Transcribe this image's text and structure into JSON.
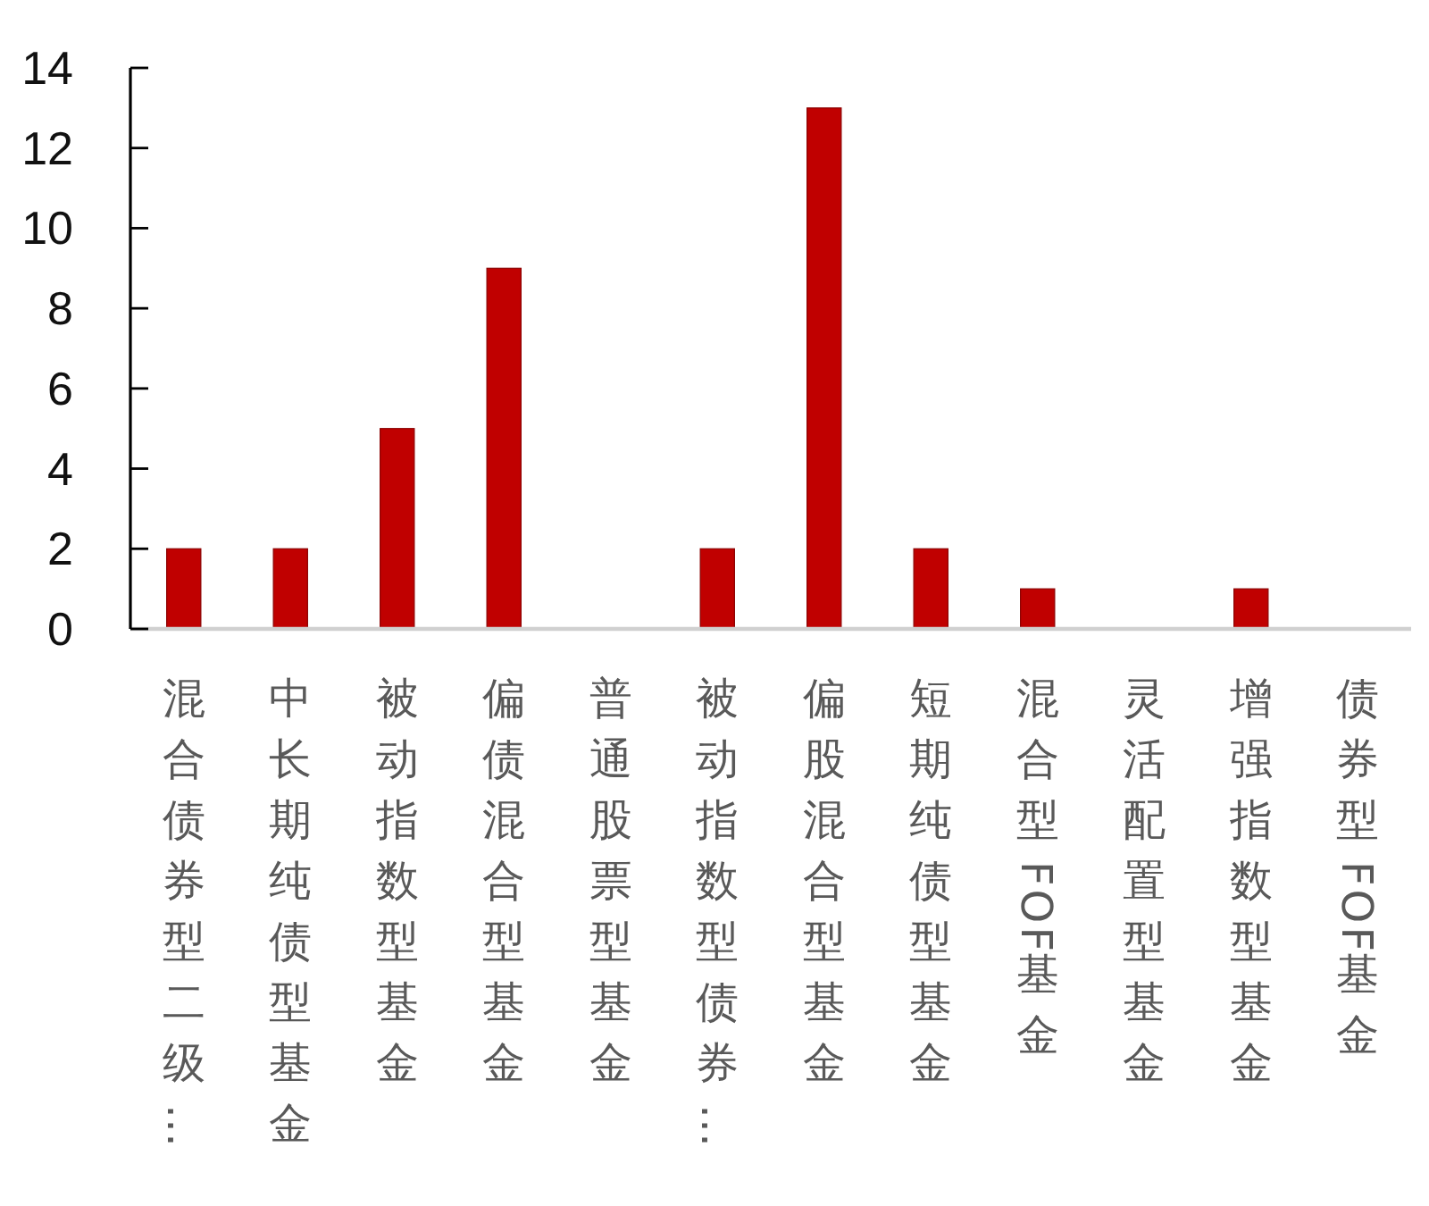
{
  "chart_data": {
    "type": "bar",
    "categories": [
      "混合债券型二级…",
      "中长期纯债型基金",
      "被动指数型基金",
      "偏债混合型基金",
      "普通股票型基金",
      "被动指数型债券…",
      "偏股混合型基金",
      "短期纯债型基金",
      "混合型FOF基金",
      "灵活配置型基金",
      "增强指数型基金",
      "债券型FOF基金"
    ],
    "values": [
      2,
      2,
      5,
      9,
      0,
      2,
      13,
      2,
      1,
      0,
      1,
      0
    ],
    "color": "#c00000",
    "ylim": [
      0,
      14
    ],
    "yticks": [
      0,
      2,
      4,
      6,
      8,
      10,
      12,
      14
    ]
  }
}
